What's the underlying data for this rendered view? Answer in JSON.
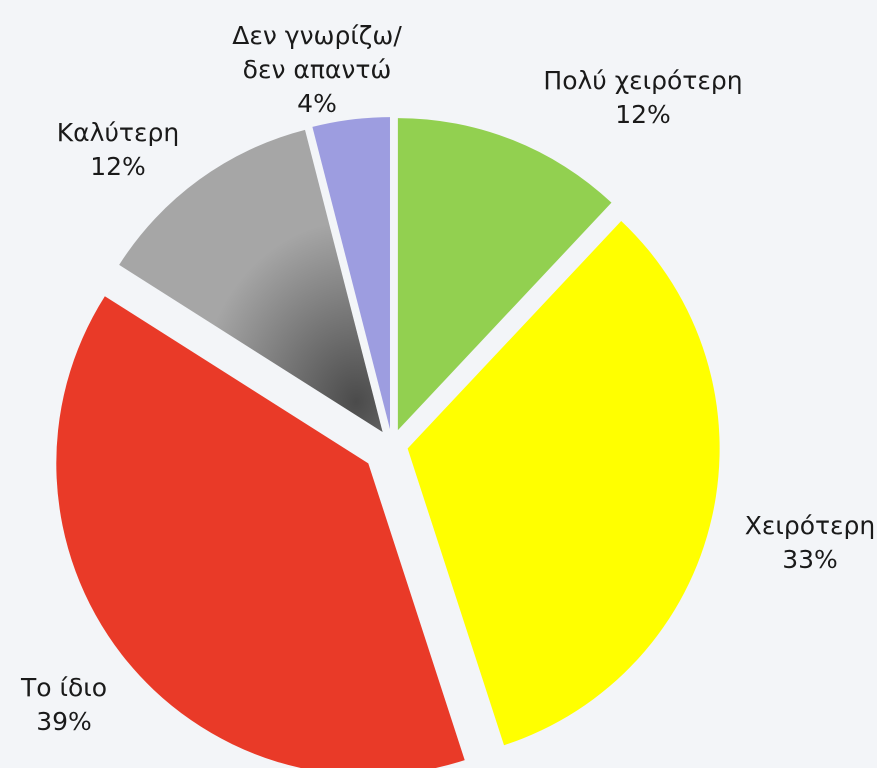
{
  "chart_data": {
    "type": "pie",
    "categories": [
      "Πολύ χειρότερη",
      "Χειρότερη",
      "Το ίδιο",
      "Καλύτερη",
      "Δεν γνωρίζω/\nδεν απαντώ"
    ],
    "values": [
      12,
      33,
      39,
      12,
      4
    ],
    "value_labels": [
      "12%",
      "33%",
      "39%",
      "12%",
      "4%"
    ],
    "colors": [
      "#92d050",
      "#ffff00",
      "#e93a28",
      "#a6a6a6",
      "#9d9de0"
    ]
  }
}
